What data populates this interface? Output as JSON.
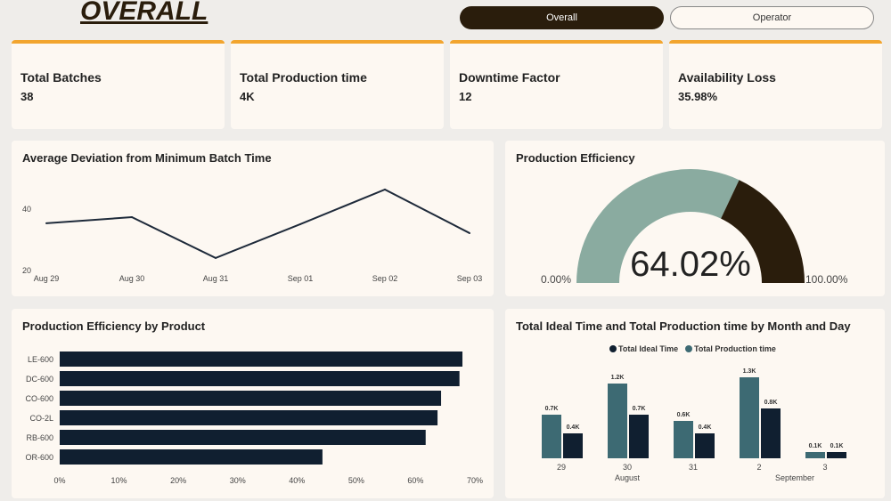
{
  "header": {
    "title": "OVERALL",
    "toggle_overall": "Overall",
    "toggle_operator": "Operator"
  },
  "kpis": [
    {
      "label": "Total Batches",
      "value": "38"
    },
    {
      "label": "Total Production time",
      "value": "4K"
    },
    {
      "label": "Downtime Factor",
      "value": "12"
    },
    {
      "label": "Availability Loss",
      "value": "35.98%"
    }
  ],
  "colors": {
    "accent": "#f2a52f",
    "dark": "#2a1d0c",
    "teal": "#3d6a73",
    "navy": "#101f30",
    "gauge": "#8aaba0"
  },
  "chart_data": [
    {
      "type": "line",
      "title": "Average Deviation from Minimum Batch Time",
      "x": [
        "Aug 29",
        "Aug 30",
        "Aug 31",
        "Sep 01",
        "Sep 02",
        "Sep 03"
      ],
      "values": [
        35.1,
        37.1,
        23.8,
        34.8,
        46.1,
        31.9
      ],
      "yticks": [
        "20",
        "40"
      ],
      "ylim": [
        20,
        40
      ]
    },
    {
      "type": "gauge",
      "title": "Production Efficiency",
      "value": 64.02,
      "value_label": "64.02%",
      "min_label": "0.00%",
      "max_label": "100.00%"
    },
    {
      "type": "bar",
      "title": "Production Efficiency by Product",
      "categories": [
        "LE-600",
        "DC-600",
        "CO-600",
        "CO-2L",
        "RB-600",
        "OR-600"
      ],
      "values": [
        67.9,
        67.4,
        64.3,
        63.7,
        61.7,
        44.3
      ],
      "xticks": [
        "0%",
        "10%",
        "20%",
        "30%",
        "40%",
        "50%",
        "60%",
        "70%"
      ],
      "xlim": [
        0,
        70
      ]
    },
    {
      "type": "bar",
      "title": "Total Ideal Time and Total Production time by Month and Day",
      "legend": [
        "Total Ideal Time",
        "Total Production time"
      ],
      "categories": [
        "29",
        "30",
        "31",
        "2",
        "3"
      ],
      "months": [
        "August",
        "September"
      ],
      "series": [
        {
          "name": "Total Production time",
          "values": [
            0.7,
            1.2,
            0.6,
            1.3,
            0.1
          ],
          "labels": [
            "0.7K",
            "1.2K",
            "0.6K",
            "1.3K",
            "0.1K"
          ]
        },
        {
          "name": "Total Ideal Time",
          "values": [
            0.4,
            0.7,
            0.4,
            0.8,
            0.1
          ],
          "labels": [
            "0.4K",
            "0.7K",
            "0.4K",
            "0.8K",
            "0.1K"
          ]
        }
      ]
    }
  ]
}
